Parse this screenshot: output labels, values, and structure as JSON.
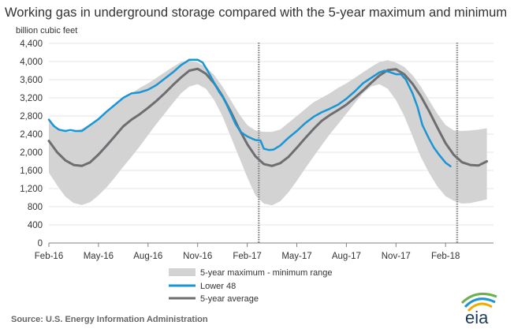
{
  "chart_data": {
    "type": "line",
    "title": "Working gas in underground storage compared with the 5-year maximum and minimum",
    "ylabel": "billion cubic feet",
    "ylim": [
      0,
      4400
    ],
    "yticks": [
      0,
      400,
      800,
      1200,
      1600,
      2000,
      2400,
      2800,
      3200,
      3600,
      4000,
      4400
    ],
    "yticklabels": [
      "0",
      "400",
      "800",
      "1,200",
      "1,600",
      "2,000",
      "2,400",
      "2,800",
      "3,200",
      "3,600",
      "4,000",
      "4,400"
    ],
    "xlim_month_index": [
      0,
      26.9
    ],
    "xticks": [
      {
        "m": 0,
        "label": "Feb-16"
      },
      {
        "m": 3,
        "label": "May-16"
      },
      {
        "m": 6,
        "label": "Aug-16"
      },
      {
        "m": 9,
        "label": "Nov-16"
      },
      {
        "m": 12,
        "label": "Feb-17"
      },
      {
        "m": 15,
        "label": "May-17"
      },
      {
        "m": 18,
        "label": "Aug-17"
      },
      {
        "m": 21,
        "label": "Nov-17"
      },
      {
        "m": 24,
        "label": "Feb-18"
      }
    ],
    "vlines_month_index": [
      12.7,
      24.7
    ],
    "series": [
      {
        "name": "5-year maximum - minimum range",
        "kind": "band",
        "color": "#d3d3d3",
        "x": [
          0,
          0.5,
          1,
          1.5,
          2,
          2.5,
          3,
          3.5,
          4,
          4.5,
          5,
          5.5,
          6,
          6.5,
          7,
          7.5,
          8,
          8.5,
          9,
          9.5,
          10,
          10.5,
          11,
          11.5,
          12,
          12.5,
          13,
          13.5,
          14,
          14.5,
          15,
          15.5,
          16,
          16.5,
          17,
          17.5,
          18,
          18.5,
          19,
          19.5,
          20,
          20.5,
          21,
          21.5,
          22,
          22.5,
          23,
          23.5,
          24,
          24.5,
          25,
          25.5,
          26,
          26.5
        ],
        "max": [
          2700,
          2550,
          2450,
          2450,
          2520,
          2620,
          2760,
          2920,
          3070,
          3200,
          3300,
          3420,
          3520,
          3640,
          3760,
          3880,
          3990,
          4020,
          3980,
          3880,
          3700,
          3450,
          3150,
          2850,
          2600,
          2480,
          2450,
          2450,
          2500,
          2650,
          2800,
          2950,
          3100,
          3200,
          3300,
          3420,
          3520,
          3640,
          3760,
          3880,
          3990,
          4030,
          3980,
          3880,
          3700,
          3450,
          3150,
          2850,
          2600,
          2480,
          2470,
          2480,
          2500,
          2530
        ],
        "min": [
          1550,
          1270,
          1020,
          880,
          840,
          900,
          1050,
          1230,
          1450,
          1680,
          1900,
          2130,
          2380,
          2620,
          2850,
          3080,
          3300,
          3450,
          3500,
          3400,
          3150,
          2800,
          2350,
          1900,
          1450,
          1050,
          870,
          830,
          920,
          1120,
          1370,
          1640,
          1900,
          2150,
          2400,
          2620,
          2850,
          3080,
          3300,
          3450,
          3500,
          3400,
          3150,
          2800,
          2350,
          1900,
          1550,
          1250,
          1030,
          930,
          870,
          880,
          920,
          960
        ]
      },
      {
        "name": "Lower 48",
        "kind": "line",
        "color": "#1b95d3",
        "x": [
          0,
          0.3,
          0.6,
          1,
          1.3,
          1.6,
          2,
          2.5,
          3,
          3.5,
          4,
          4.5,
          5,
          5.5,
          6,
          6.5,
          7,
          7.5,
          8,
          8.5,
          9,
          9.3,
          9.6,
          10,
          10.3,
          10.6,
          11,
          11.3,
          11.6,
          12,
          12.3,
          12.5,
          12.8,
          13,
          13.3,
          13.6,
          14,
          14.5,
          15,
          15.5,
          16,
          16.5,
          17,
          17.5,
          18,
          18.5,
          19,
          19.5,
          20,
          20.3,
          20.6,
          21,
          21.3,
          21.6,
          22,
          22.3,
          22.6,
          23,
          23.3,
          23.6,
          24,
          24.3
        ],
        "y": [
          2720,
          2580,
          2500,
          2470,
          2490,
          2470,
          2470,
          2600,
          2730,
          2900,
          3050,
          3200,
          3300,
          3320,
          3380,
          3480,
          3620,
          3760,
          3920,
          4040,
          4040,
          3980,
          3800,
          3530,
          3330,
          3180,
          2860,
          2620,
          2450,
          2350,
          2300,
          2270,
          2260,
          2080,
          2050,
          2060,
          2150,
          2320,
          2470,
          2640,
          2780,
          2880,
          2960,
          3050,
          3180,
          3340,
          3520,
          3640,
          3760,
          3800,
          3770,
          3720,
          3720,
          3600,
          3300,
          3000,
          2600,
          2300,
          2100,
          1950,
          1770,
          1690
        ]
      },
      {
        "name": "5-year average",
        "kind": "line",
        "color": "#6d6e71",
        "x": [
          0,
          0.5,
          1,
          1.5,
          2,
          2.5,
          3,
          3.5,
          4,
          4.5,
          5,
          5.5,
          6,
          6.5,
          7,
          7.5,
          8,
          8.5,
          9,
          9.5,
          10,
          10.5,
          11,
          11.5,
          12,
          12.5,
          13,
          13.5,
          14,
          14.5,
          15,
          15.5,
          16,
          16.5,
          17,
          17.5,
          18,
          18.5,
          19,
          19.5,
          20,
          20.5,
          21,
          21.5,
          22,
          22.5,
          23,
          23.5,
          24,
          24.5,
          25,
          25.5,
          26,
          26.5
        ],
        "y": [
          2250,
          2000,
          1820,
          1720,
          1700,
          1780,
          1950,
          2150,
          2360,
          2570,
          2720,
          2840,
          2980,
          3130,
          3300,
          3480,
          3650,
          3800,
          3840,
          3730,
          3520,
          3240,
          2900,
          2520,
          2180,
          1910,
          1740,
          1700,
          1760,
          1900,
          2100,
          2310,
          2510,
          2690,
          2820,
          2930,
          3050,
          3200,
          3360,
          3530,
          3690,
          3810,
          3830,
          3720,
          3510,
          3240,
          2910,
          2550,
          2200,
          1940,
          1780,
          1720,
          1710,
          1800
        ]
      }
    ],
    "legend_position": "bottom-center"
  },
  "source_text": "Source:  U.S. Energy Information Administration",
  "logo": {
    "text": "eia"
  }
}
